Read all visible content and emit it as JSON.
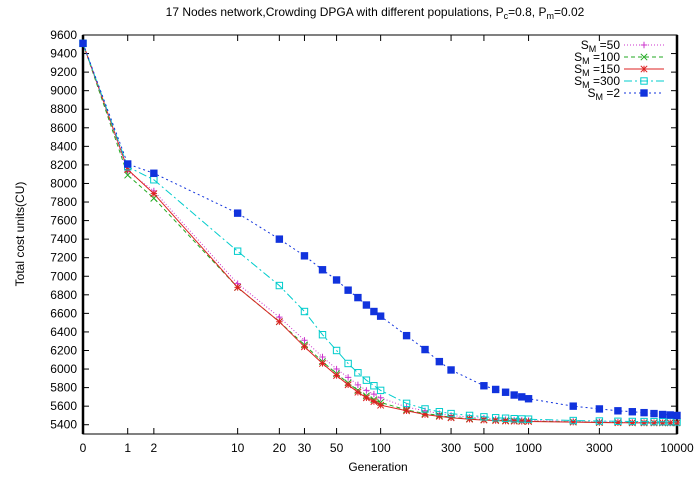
{
  "chart_data": {
    "type": "line",
    "title": "17 Nodes network,Crowding DPGA with different populations, P",
    "title_sub_c": "c",
    "title_mid": "=0.8, P",
    "title_sub_m": "m",
    "title_end": "=0.02",
    "xlabel": "Generation",
    "ylabel": "Total cost units(CU)",
    "x_scale": "log(x+1)",
    "xlim": [
      0,
      10000
    ],
    "ylim": [
      5300,
      9600
    ],
    "x_ticks": [
      0,
      1,
      2,
      10,
      20,
      30,
      50,
      100,
      300,
      500,
      1000,
      3000,
      10000
    ],
    "x_tick_labels": [
      "0",
      "1",
      "2",
      "10",
      "20",
      "30",
      "50",
      "100",
      "300",
      "500",
      "1000",
      "3000",
      "10000"
    ],
    "y_ticks": [
      5400,
      5600,
      5800,
      6000,
      6200,
      6400,
      6600,
      6800,
      7000,
      7200,
      7400,
      7600,
      7800,
      8000,
      8200,
      8400,
      8600,
      8800,
      9000,
      9200,
      9400,
      9600
    ],
    "y_tick_labels": [
      "5400",
      "5600",
      "5800",
      "6000",
      "6200",
      "6400",
      "6600",
      "6800",
      "7000",
      "7200",
      "7400",
      "7600",
      "7800",
      "8000",
      "8200",
      "8400",
      "8600",
      "8800",
      "9000",
      "9200",
      "9400",
      "9600"
    ],
    "grid": false,
    "legend_position": "top-right",
    "series": [
      {
        "name": "S_M =50",
        "label_main": "S",
        "label_sub": "M",
        "label_rest": " =50",
        "color": "#cc33cc",
        "marker": "plus",
        "dash": "1,2",
        "x": [
          0,
          1,
          2,
          10,
          20,
          30,
          40,
          50,
          60,
          70,
          80,
          90,
          100,
          150,
          200,
          250,
          300,
          400,
          500,
          600,
          700,
          800,
          900,
          1000,
          2000,
          3000,
          4000,
          5000,
          6000,
          7000,
          8000,
          9000,
          10000
        ],
        "y": [
          9510,
          8130,
          7920,
          6920,
          6560,
          6310,
          6130,
          6000,
          5910,
          5830,
          5770,
          5730,
          5690,
          5590,
          5550,
          5520,
          5500,
          5480,
          5470,
          5460,
          5455,
          5450,
          5448,
          5445,
          5435,
          5430,
          5428,
          5425,
          5423,
          5422,
          5421,
          5420,
          5420
        ]
      },
      {
        "name": "S_M =100",
        "label_main": "S",
        "label_sub": "M",
        "label_rest": " =100",
        "color": "#22aa22",
        "marker": "x",
        "dash": "4,3",
        "x": [
          0,
          1,
          2,
          10,
          20,
          30,
          40,
          50,
          60,
          70,
          80,
          90,
          100,
          150,
          200,
          250,
          300,
          400,
          500,
          600,
          700,
          800,
          900,
          1000,
          2000,
          3000,
          4000,
          5000,
          6000,
          7000,
          8000,
          9000,
          10000
        ],
        "y": [
          9510,
          8090,
          7840,
          6880,
          6510,
          6260,
          6080,
          5950,
          5850,
          5770,
          5710,
          5670,
          5640,
          5560,
          5520,
          5500,
          5480,
          5465,
          5455,
          5450,
          5445,
          5442,
          5440,
          5438,
          5430,
          5425,
          5423,
          5422,
          5421,
          5420,
          5420,
          5420,
          5420
        ]
      },
      {
        "name": "S_M =150",
        "label_main": "S",
        "label_sub": "M",
        "label_rest": " =150",
        "color": "#dd2222",
        "marker": "star",
        "dash": "",
        "x": [
          0,
          1,
          2,
          10,
          20,
          30,
          40,
          50,
          60,
          70,
          80,
          90,
          100,
          150,
          200,
          250,
          300,
          400,
          500,
          600,
          700,
          800,
          900,
          1000,
          2000,
          3000,
          4000,
          5000,
          6000,
          7000,
          8000,
          9000,
          10000
        ],
        "y": [
          9510,
          8150,
          7890,
          6880,
          6510,
          6240,
          6060,
          5930,
          5830,
          5750,
          5690,
          5650,
          5610,
          5550,
          5510,
          5490,
          5475,
          5460,
          5450,
          5445,
          5440,
          5438,
          5436,
          5435,
          5428,
          5424,
          5422,
          5421,
          5420,
          5420,
          5420,
          5420,
          5420
        ]
      },
      {
        "name": "S_M =300",
        "label_main": "S",
        "label_sub": "M",
        "label_rest": " =300",
        "color": "#00cccc",
        "marker": "open-square",
        "dash": "8,3,2,3",
        "x": [
          0,
          1,
          2,
          10,
          20,
          30,
          40,
          50,
          60,
          70,
          80,
          90,
          100,
          150,
          200,
          250,
          300,
          400,
          500,
          600,
          700,
          800,
          900,
          1000,
          2000,
          3000,
          4000,
          5000,
          6000,
          7000,
          8000,
          9000,
          10000
        ],
        "y": [
          9510,
          8180,
          8040,
          7270,
          6900,
          6620,
          6370,
          6200,
          6060,
          5960,
          5880,
          5820,
          5770,
          5630,
          5570,
          5540,
          5520,
          5500,
          5485,
          5475,
          5470,
          5465,
          5462,
          5460,
          5445,
          5440,
          5437,
          5435,
          5434,
          5433,
          5432,
          5431,
          5430
        ]
      },
      {
        "name": "S_M =2",
        "label_main": "S",
        "label_sub": "M",
        "label_rest": " =2",
        "color": "#1133dd",
        "marker": "filled-square",
        "dash": "2,3",
        "x": [
          0,
          1,
          2,
          10,
          20,
          30,
          40,
          50,
          60,
          70,
          80,
          90,
          100,
          150,
          200,
          250,
          300,
          500,
          600,
          700,
          800,
          900,
          1000,
          2000,
          3000,
          4000,
          5000,
          6000,
          7000,
          8000,
          9000,
          10000
        ],
        "y": [
          9510,
          8210,
          8110,
          7680,
          7400,
          7220,
          7070,
          6960,
          6850,
          6770,
          6690,
          6620,
          6570,
          6360,
          6210,
          6080,
          5990,
          5820,
          5780,
          5750,
          5720,
          5700,
          5680,
          5600,
          5570,
          5550,
          5540,
          5530,
          5520,
          5510,
          5505,
          5500
        ]
      }
    ]
  }
}
